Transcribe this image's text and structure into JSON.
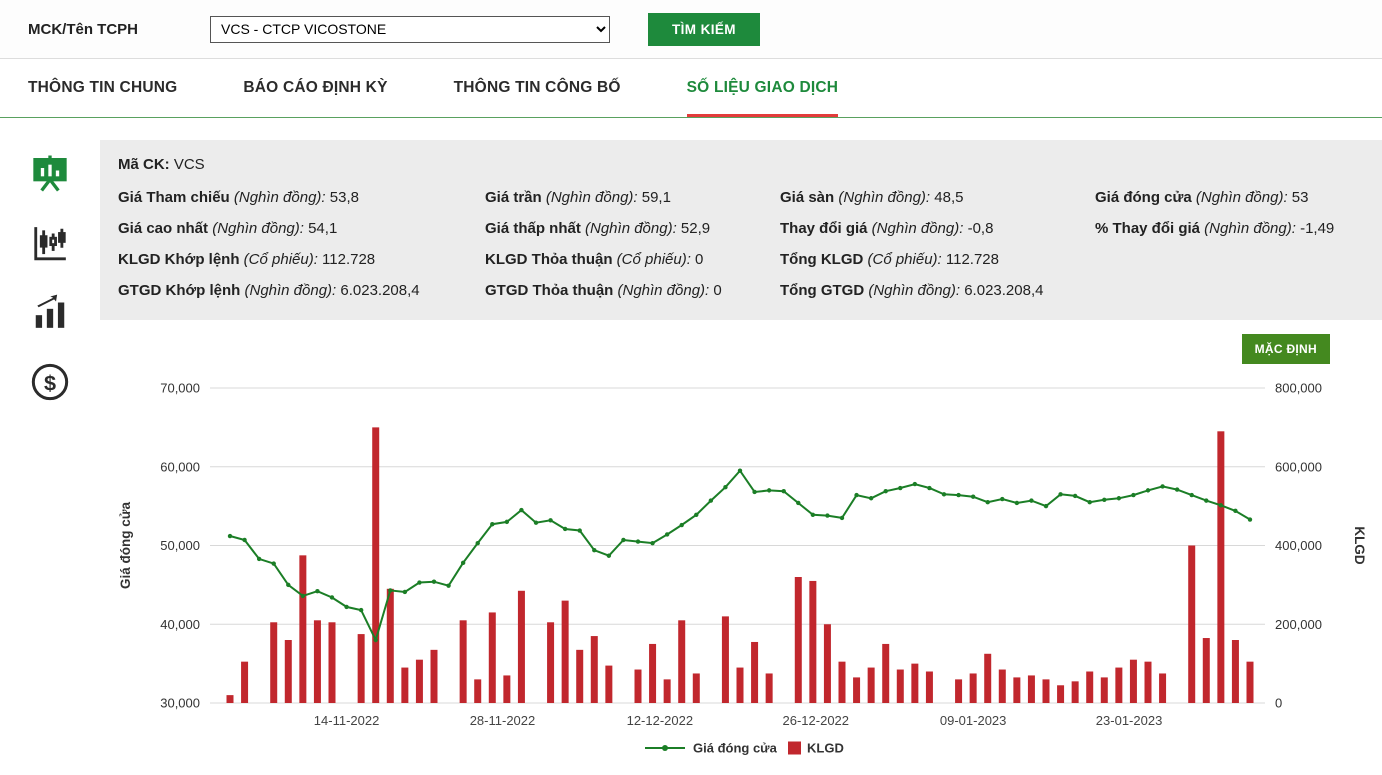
{
  "colors": {
    "accent_green": "#1e8a3c",
    "default_button_green": "#44891f",
    "active_tab_underline_red": "#e23b3b",
    "bar_red": "#c1272d",
    "line_green": "#1b7e26",
    "info_panel_bg": "#ececec"
  },
  "header": {
    "field_label": "MCK/Tên TCPH",
    "select_value": "VCS - CTCP VICOSTONE",
    "search_button": "TÌM KIẾM"
  },
  "tabs": [
    {
      "label": "THÔNG TIN CHUNG",
      "active": false
    },
    {
      "label": "BÁO CÁO ĐỊNH KỲ",
      "active": false
    },
    {
      "label": "THÔNG TIN CÔNG BỐ",
      "active": false
    },
    {
      "label": "SỐ LIỆU GIAO DỊCH",
      "active": true
    }
  ],
  "sidebar": {
    "icons": [
      "presentation-chart-icon",
      "candlestick-chart-icon",
      "bar-chart-icon",
      "money-circle-icon"
    ]
  },
  "info": {
    "symbol_label": "Mã CK:",
    "symbol": "VCS",
    "rows": [
      [
        {
          "label": "Giá Tham chiếu",
          "unit": "(Nghìn đồng):",
          "value": "53,8"
        },
        {
          "label": "Giá trần",
          "unit": "(Nghìn đồng):",
          "value": "59,1"
        },
        {
          "label": "Giá sàn",
          "unit": "(Nghìn đồng):",
          "value": "48,5"
        },
        {
          "label": "Giá đóng cửa",
          "unit": "(Nghìn đồng):",
          "value": "53"
        }
      ],
      [
        {
          "label": "Giá cao nhất",
          "unit": "(Nghìn đồng):",
          "value": "54,1"
        },
        {
          "label": "Giá thấp nhất",
          "unit": "(Nghìn đồng):",
          "value": "52,9"
        },
        {
          "label": "Thay đổi giá",
          "unit": "(Nghìn đồng):",
          "value": "-0,8"
        },
        {
          "label": "% Thay đổi giá",
          "unit": "(Nghìn đồng):",
          "value": "-1,49"
        }
      ],
      [
        {
          "label": "KLGD Khớp lệnh",
          "unit": "(Cổ phiếu):",
          "value": "112.728"
        },
        {
          "label": "KLGD Thỏa thuận",
          "unit": "(Cổ phiếu):",
          "value": "0"
        },
        {
          "label": "Tổng KLGD",
          "unit": "(Cổ phiếu):",
          "value": "112.728"
        },
        null
      ],
      [
        {
          "label": "GTGD Khớp lệnh",
          "unit": "(Nghìn đồng):",
          "value": "6.023.208,4"
        },
        {
          "label": "GTGD Thỏa thuận",
          "unit": "(Nghìn đồng):",
          "value": "0"
        },
        {
          "label": "Tổng GTGD",
          "unit": "(Nghìn đồng):",
          "value": "6.023.208,4"
        },
        null
      ]
    ]
  },
  "chart": {
    "default_button": "MẶC ĐỊNH"
  },
  "chart_data": {
    "type": "combo line+bar",
    "left_axis": {
      "title": "Giá đóng cửa",
      "min": 30000,
      "max": 70000,
      "ticks": [
        "30,000",
        "40,000",
        "50,000",
        "60,000",
        "70,000"
      ]
    },
    "right_axis": {
      "title": "KLGD",
      "min": 0,
      "max": 800000,
      "ticks": [
        "0",
        "200,000",
        "400,000",
        "600,000",
        "800,000"
      ]
    },
    "x_tick_labels": [
      "14-11-2022",
      "28-11-2022",
      "12-12-2022",
      "26-12-2022",
      "09-01-2023",
      "23-01-2023"
    ],
    "x_tick_indices": [
      8,
      18.7,
      29.5,
      40.2,
      51,
      61.7
    ],
    "grid": true,
    "legend_position": "bottom",
    "series": [
      {
        "name": "Giá đóng cửa",
        "type": "line",
        "axis": "left",
        "color": "#1b7e26",
        "values": [
          51200,
          50700,
          48300,
          47700,
          45000,
          43600,
          44200,
          43400,
          42200,
          41800,
          38000,
          44300,
          44100,
          45300,
          45400,
          44900,
          47800,
          50300,
          52700,
          53000,
          54500,
          52900,
          53200,
          52100,
          51900,
          49400,
          48700,
          50700,
          50500,
          50300,
          51400,
          52600,
          53900,
          55700,
          57400,
          59500,
          56800,
          57000,
          56900,
          55400,
          53900,
          53800,
          53500,
          56400,
          56000,
          56900,
          57300,
          57800,
          57300,
          56500,
          56400,
          56200,
          55500,
          55900,
          55400,
          55700,
          55000,
          56500,
          56300,
          55500,
          55800,
          56000,
          56400,
          57000,
          57500,
          57100,
          56400,
          55700,
          55100,
          54400,
          53300
        ]
      },
      {
        "name": "KLGD",
        "type": "bar",
        "axis": "right",
        "color": "#c1272d",
        "values": [
          20000,
          105000,
          0,
          205000,
          160000,
          375000,
          210000,
          205000,
          0,
          175000,
          700000,
          290000,
          90000,
          110000,
          135000,
          0,
          210000,
          60000,
          230000,
          70000,
          285000,
          0,
          205000,
          260000,
          135000,
          170000,
          95000,
          0,
          85000,
          150000,
          60000,
          210000,
          75000,
          0,
          220000,
          90000,
          155000,
          75000,
          0,
          320000,
          310000,
          200000,
          105000,
          65000,
          90000,
          150000,
          85000,
          100000,
          80000,
          0,
          60000,
          75000,
          125000,
          85000,
          65000,
          70000,
          60000,
          45000,
          55000,
          80000,
          65000,
          90000,
          110000,
          105000,
          75000,
          0,
          400000,
          165000,
          690000,
          160000,
          105000
        ]
      }
    ]
  }
}
